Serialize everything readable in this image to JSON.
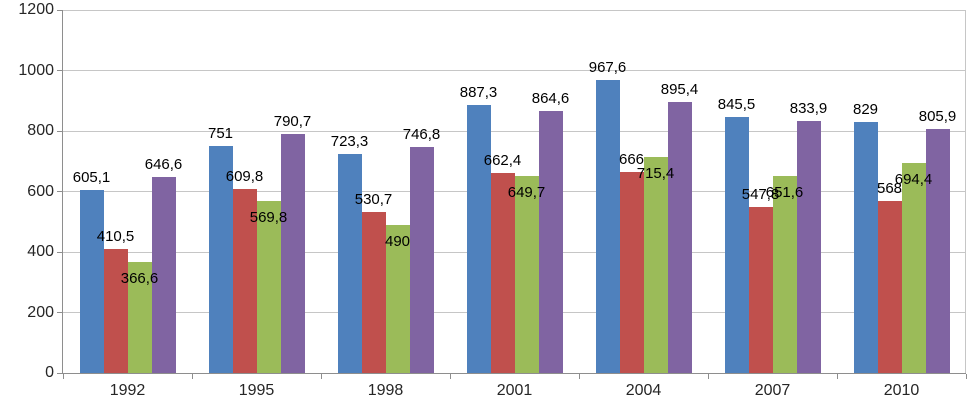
{
  "chart_data": {
    "type": "bar",
    "title": "",
    "xlabel": "",
    "ylabel": "",
    "categories": [
      "1992",
      "1995",
      "1998",
      "2001",
      "2004",
      "2007",
      "2010"
    ],
    "series": [
      {
        "name": "blue",
        "color": "#4F81BD",
        "values": [
          605.1,
          751,
          723.3,
          887.3,
          967.6,
          845.5,
          829
        ],
        "labels": [
          "605,1",
          "751",
          "723,3",
          "887,3",
          "967,6",
          "845,5",
          "829"
        ]
      },
      {
        "name": "red",
        "color": "#C0504D",
        "values": [
          410.5,
          609.8,
          530.7,
          662.4,
          666,
          547.8,
          568
        ],
        "labels": [
          "410,5",
          "609,8",
          "530,7",
          "662,4",
          "666",
          "547,8",
          "568"
        ]
      },
      {
        "name": "green",
        "color": "#9BBB59",
        "values": [
          366.6,
          569.8,
          490,
          649.7,
          715.4,
          651.6,
          694.4
        ],
        "labels": [
          "366,6",
          "569,8",
          "490",
          "649,7",
          "715,4",
          "651,6",
          "694,4"
        ]
      },
      {
        "name": "purple",
        "color": "#8064A2",
        "values": [
          646.6,
          790.7,
          746.8,
          864.6,
          895.4,
          833.9,
          805.9
        ],
        "labels": [
          "646,6",
          "790,7",
          "746,8",
          "864,6",
          "895,4",
          "833,9",
          "805,9"
        ]
      }
    ],
    "y_axis": {
      "min": 0,
      "max": 1200,
      "step": 200,
      "ticks": [
        "0",
        "200",
        "400",
        "600",
        "800",
        "1000",
        "1200"
      ]
    },
    "grid": true,
    "legend": false,
    "decimal_separator": ","
  }
}
